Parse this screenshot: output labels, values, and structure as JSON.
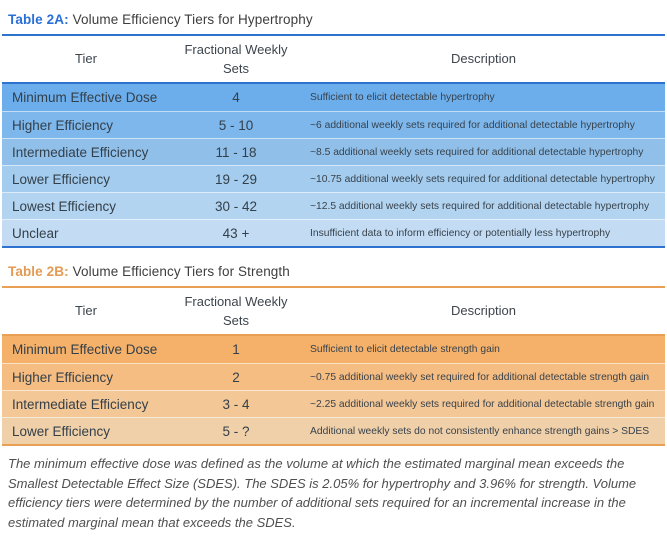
{
  "colors": {
    "blue_accent": "#2a6fd6",
    "blue_border": "#2d72cf",
    "orange_accent": "#e39a52",
    "orange_border": "#e9a054"
  },
  "table_a": {
    "label": "Table 2A:",
    "caption": "Volume Efficiency Tiers for Hypertrophy",
    "headers": {
      "tier": "Tier",
      "sets": "Fractional Weekly Sets",
      "description": "Description"
    },
    "rows": [
      {
        "tier": "Minimum Effective Dose",
        "sets": "4",
        "description": "Sufficient to elicit detectable hypertrophy",
        "bg": "#6caeec"
      },
      {
        "tier": "Higher Efficiency",
        "sets": "5 - 10",
        "description": "~6 additional weekly sets required for additional detectable hypertrophy",
        "bg": "#7db7ec"
      },
      {
        "tier": "Intermediate Efficiency",
        "sets": "11 - 18",
        "description": "~8.5 additional weekly sets required for additional detectable hypertrophy",
        "bg": "#90c0ea"
      },
      {
        "tier": "Lower Efficiency",
        "sets": "19 - 29",
        "description": "~10.75 additional weekly sets required for additional detectable hypertrophy",
        "bg": "#a3ccee"
      },
      {
        "tier": "Lowest Efficiency",
        "sets": "30 - 42",
        "description": "~12.5 additional weekly sets required for additional detectable hypertrophy",
        "bg": "#b3d4f0"
      },
      {
        "tier": "Unclear",
        "sets": "43 +",
        "description": "Insufficient data to inform efficiency or potentially less hypertrophy",
        "bg": "#c3dcf3"
      }
    ]
  },
  "table_b": {
    "label": "Table 2B:",
    "caption": "Volume Efficiency Tiers for Strength",
    "headers": {
      "tier": "Tier",
      "sets": "Fractional Weekly Sets",
      "description": "Description"
    },
    "rows": [
      {
        "tier": "Minimum Effective Dose",
        "sets": "1",
        "description": "Sufficient to elicit detectable strength gain",
        "bg": "#f5b169"
      },
      {
        "tier": "Higher Efficiency",
        "sets": "2",
        "description": "~0.75 additional weekly set required for additional detectable strength gain",
        "bg": "#f6bd82"
      },
      {
        "tier": "Intermediate Efficiency",
        "sets": "3 - 4",
        "description": "~2.25 additional weekly sets required for additional detectable strength gain",
        "bg": "#f3c796"
      },
      {
        "tier": "Lower Efficiency",
        "sets": "5 - ?",
        "description": "Additional weekly sets do not consistently enhance strength gains > SDES",
        "bg": "#f0d0a9"
      }
    ]
  },
  "footnote": "The minimum effective dose was defined as the volume at which the estimated marginal mean exceeds the Smallest Detectable Effect Size (SDES). The SDES is 2.05% for hypertrophy and 3.96% for strength. Volume efficiency tiers were determined by the number of additional sets required for an incremental increase in the estimated marginal mean that exceeds the SDES."
}
